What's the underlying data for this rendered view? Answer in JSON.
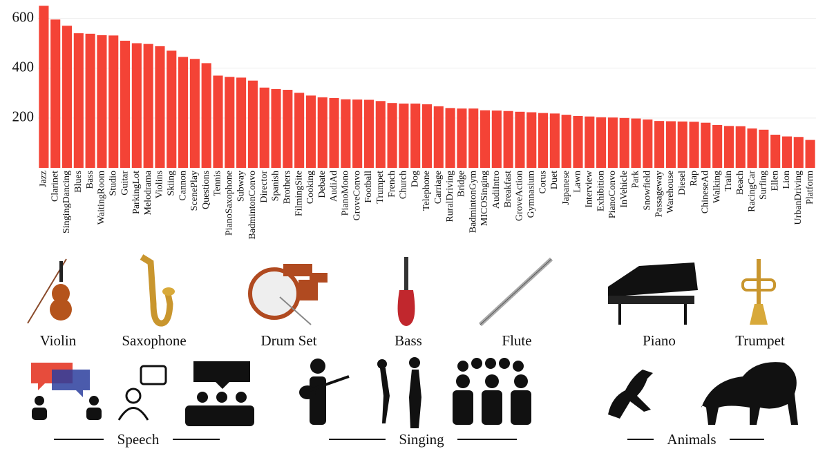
{
  "chart_data": {
    "type": "bar",
    "categories": [
      "Jazz",
      "Clarinet",
      "SingingDancing",
      "Blues",
      "Bass",
      "WaitingRoom",
      "Studio",
      "Guitar",
      "ParkingLot",
      "Melodrama",
      "Violins",
      "Skiing",
      "Cannon",
      "ScenePlay",
      "Questions",
      "Tennis",
      "PianoSaxophone",
      "Subway",
      "BadmintonConvo",
      "Director",
      "Spanish",
      "Brothers",
      "FilmingSite",
      "Cooking",
      "Debate",
      "AudiAd",
      "PianoMono",
      "GroveConvo",
      "Football",
      "Trumpet",
      "French",
      "Church",
      "Dog",
      "Telephone",
      "Carriage",
      "RuralDriving",
      "Bridge",
      "BadmintonGym",
      "MICOSinging",
      "AudiIntro",
      "Breakfast",
      "GroveAction",
      "Gymnasium",
      "Corus",
      "Duet",
      "Japanese",
      "Lawn",
      "Interview",
      "Exhibition",
      "PianoConvo",
      "InVehicle",
      "Park",
      "Snowfield",
      "Passageway",
      "Warehouse",
      "Diesel",
      "Rap",
      "ChineseAd",
      "Walking",
      "Train",
      "Beach",
      "RacingCar",
      "Surfing",
      "Ellen",
      "Lion",
      "UrbanDriving",
      "Platform"
    ],
    "values": [
      650,
      595,
      570,
      540,
      538,
      532,
      531,
      510,
      500,
      497,
      488,
      470,
      445,
      437,
      420,
      370,
      365,
      362,
      350,
      322,
      316,
      313,
      301,
      290,
      283,
      280,
      275,
      274,
      273,
      268,
      260,
      258,
      258,
      255,
      247,
      240,
      238,
      238,
      231,
      230,
      228,
      225,
      223,
      220,
      218,
      213,
      208,
      206,
      203,
      202,
      200,
      198,
      194,
      188,
      187,
      186,
      185,
      181,
      172,
      168,
      167,
      158,
      153,
      133,
      126,
      124,
      112
    ],
    "color": "#f44336",
    "ylim": [
      0,
      665
    ],
    "yticks": [
      200,
      400,
      600
    ],
    "grid": true
  },
  "instruments": [
    "Violin",
    "Saxophone",
    "Drum Set",
    "Bass",
    "Flute",
    "Piano",
    "Trumpet"
  ],
  "groups": [
    "Speech",
    "Singing",
    "Animals"
  ]
}
